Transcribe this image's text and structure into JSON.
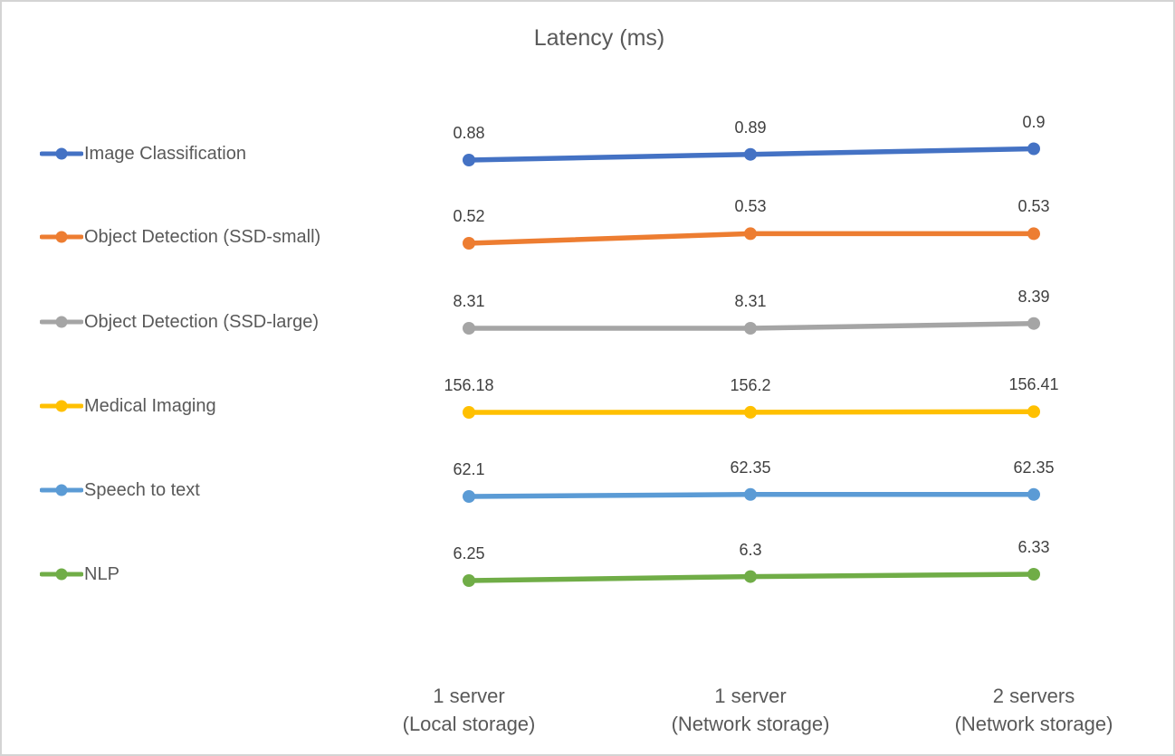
{
  "chart_data": {
    "type": "line",
    "title": "Latency (ms)",
    "xlabel": "",
    "ylabel": "",
    "grid": false,
    "axes_visible": false,
    "data_labels": true,
    "legend_position": "left",
    "categories": [
      [
        "1 server",
        "(Local storage)"
      ],
      [
        "1 server",
        "(Network storage)"
      ],
      [
        "2 servers",
        "(Network storage)"
      ]
    ],
    "series": [
      {
        "name": "Image Classification",
        "color": "#4472C4",
        "values": [
          0.88,
          0.89,
          0.9
        ],
        "labels": [
          "0.88",
          "0.89",
          "0.9"
        ]
      },
      {
        "name": "Object Detection (SSD-small)",
        "color": "#ED7D31",
        "values": [
          0.52,
          0.53,
          0.53
        ],
        "labels": [
          "0.52",
          "0.53",
          "0.53"
        ]
      },
      {
        "name": "Object Detection (SSD-large)",
        "color": "#A5A5A5",
        "values": [
          8.31,
          8.31,
          8.39
        ],
        "labels": [
          "8.31",
          "8.31",
          "8.39"
        ]
      },
      {
        "name": "Medical Imaging",
        "color": "#FFC000",
        "values": [
          156.18,
          156.2,
          156.41
        ],
        "labels": [
          "156.18",
          "156.2",
          "156.41"
        ]
      },
      {
        "name": "Speech to text",
        "color": "#5B9BD5",
        "values": [
          62.1,
          62.35,
          62.35
        ],
        "labels": [
          "62.1",
          "62.35",
          "62.35"
        ]
      },
      {
        "name": "NLP",
        "color": "#70AD47",
        "values": [
          6.25,
          6.3,
          6.33
        ],
        "labels": [
          "6.25",
          "6.3",
          "6.33"
        ]
      }
    ],
    "title_color": "#595959",
    "label_color": "#404040",
    "axis_text_color": "#595959"
  }
}
